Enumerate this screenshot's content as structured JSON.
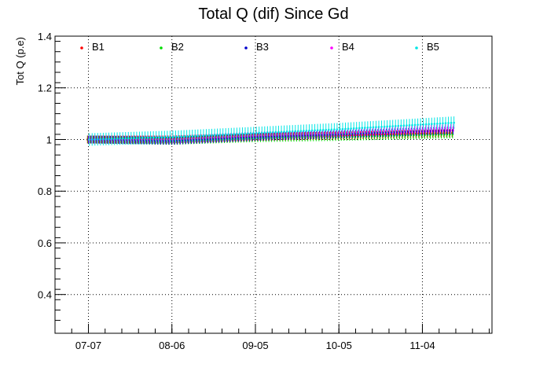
{
  "chart_data": {
    "type": "scatter",
    "title": "Total Q (dif) Since Gd",
    "xlabel": "",
    "ylabel": "Tot Q (p.e)",
    "xlim": [
      "2017-06-25",
      "2017-11-29"
    ],
    "ylim": [
      0.25,
      1.4
    ],
    "x_ticks": [
      {
        "date": "2017-07-07",
        "label": "07-07"
      },
      {
        "date": "2017-08-06",
        "label": "08-06"
      },
      {
        "date": "2017-09-05",
        "label": "09-05"
      },
      {
        "date": "2017-10-05",
        "label": "10-05"
      },
      {
        "date": "2017-11-04",
        "label": "11-04"
      }
    ],
    "y_ticks": [
      {
        "value": 0.4,
        "label": "0.4"
      },
      {
        "value": 0.6,
        "label": "0.6"
      },
      {
        "value": 0.8,
        "label": "0.8"
      },
      {
        "value": 1.0,
        "label": "1"
      },
      {
        "value": 1.2,
        "label": "1.2"
      },
      {
        "value": 1.4,
        "label": "1.4"
      }
    ],
    "grid": true,
    "legend_position": "top",
    "x_start": "2017-07-07",
    "x_end": "2017-11-15",
    "point_spacing_days": 1,
    "series": [
      {
        "name": "B1",
        "color": "#ff0000",
        "trend": [
          [
            0,
            1.0
          ],
          [
            30,
            1.0
          ],
          [
            60,
            1.01
          ],
          [
            90,
            1.015
          ],
          [
            131,
            1.025
          ]
        ]
      },
      {
        "name": "B2",
        "color": "#00dd00",
        "trend": [
          [
            0,
            1.0
          ],
          [
            30,
            0.995
          ],
          [
            60,
            1.005
          ],
          [
            90,
            1.01
          ],
          [
            131,
            1.02
          ]
        ]
      },
      {
        "name": "B3",
        "color": "#0000cc",
        "trend": [
          [
            0,
            1.0
          ],
          [
            30,
            0.995
          ],
          [
            60,
            1.01
          ],
          [
            90,
            1.02
          ],
          [
            131,
            1.035
          ]
        ]
      },
      {
        "name": "B4",
        "color": "#ff00ff",
        "trend": [
          [
            0,
            1.0
          ],
          [
            30,
            1.0
          ],
          [
            60,
            1.015
          ],
          [
            90,
            1.025
          ],
          [
            131,
            1.045
          ]
        ]
      },
      {
        "name": "B5",
        "color": "#00e5e5",
        "trend": [
          [
            0,
            1.0
          ],
          [
            30,
            1.01
          ],
          [
            60,
            1.025
          ],
          [
            90,
            1.04
          ],
          [
            131,
            1.065
          ]
        ]
      }
    ]
  }
}
